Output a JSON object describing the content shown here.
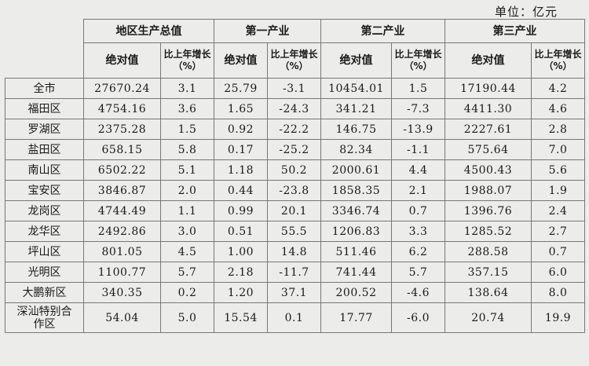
{
  "unit_label": "单位：亿元",
  "headers": {
    "groups": [
      "地区生产总值",
      "第一产业",
      "第二产业",
      "第三产业"
    ],
    "absolute": "绝对值",
    "growth": "比上年增长（%）"
  },
  "rows": [
    {
      "region": "全市",
      "gdp": "27670.24",
      "gdp_g": "3.1",
      "p1": "25.79",
      "p1_g": "-3.1",
      "p2": "10454.01",
      "p2_g": "1.5",
      "p3": "17190.44",
      "p3_g": "4.2"
    },
    {
      "region": "福田区",
      "gdp": "4754.16",
      "gdp_g": "3.6",
      "p1": "1.65",
      "p1_g": "-24.3",
      "p2": "341.21",
      "p2_g": "-7.3",
      "p3": "4411.30",
      "p3_g": "4.6"
    },
    {
      "region": "罗湖区",
      "gdp": "2375.28",
      "gdp_g": "1.5",
      "p1": "0.92",
      "p1_g": "-22.2",
      "p2": "146.75",
      "p2_g": "-13.9",
      "p3": "2227.61",
      "p3_g": "2.8"
    },
    {
      "region": "盐田区",
      "gdp": "658.15",
      "gdp_g": "5.8",
      "p1": "0.17",
      "p1_g": "-25.2",
      "p2": "82.34",
      "p2_g": "-1.1",
      "p3": "575.64",
      "p3_g": "7.0"
    },
    {
      "region": "南山区",
      "gdp": "6502.22",
      "gdp_g": "5.1",
      "p1": "1.18",
      "p1_g": "50.2",
      "p2": "2000.61",
      "p2_g": "4.4",
      "p3": "4500.43",
      "p3_g": "5.6"
    },
    {
      "region": "宝安区",
      "gdp": "3846.87",
      "gdp_g": "2.0",
      "p1": "0.44",
      "p1_g": "-23.8",
      "p2": "1858.35",
      "p2_g": "2.1",
      "p3": "1988.07",
      "p3_g": "1.9"
    },
    {
      "region": "龙岗区",
      "gdp": "4744.49",
      "gdp_g": "1.1",
      "p1": "0.99",
      "p1_g": "20.1",
      "p2": "3346.74",
      "p2_g": "0.7",
      "p3": "1396.76",
      "p3_g": "2.4"
    },
    {
      "region": "龙华区",
      "gdp": "2492.86",
      "gdp_g": "3.0",
      "p1": "0.51",
      "p1_g": "55.5",
      "p2": "1206.83",
      "p2_g": "3.3",
      "p3": "1285.52",
      "p3_g": "2.7"
    },
    {
      "region": "坪山区",
      "gdp": "801.05",
      "gdp_g": "4.5",
      "p1": "1.00",
      "p1_g": "14.8",
      "p2": "511.46",
      "p2_g": "6.2",
      "p3": "288.58",
      "p3_g": "0.7"
    },
    {
      "region": "光明区",
      "gdp": "1100.77",
      "gdp_g": "5.7",
      "p1": "2.18",
      "p1_g": "-11.7",
      "p2": "741.44",
      "p2_g": "5.7",
      "p3": "357.15",
      "p3_g": "6.0"
    },
    {
      "region": "大鹏新区",
      "gdp": "340.35",
      "gdp_g": "0.2",
      "p1": "1.20",
      "p1_g": "37.1",
      "p2": "200.52",
      "p2_g": "-4.6",
      "p3": "138.64",
      "p3_g": "8.0"
    },
    {
      "region": "深汕特别合作区",
      "gdp": "54.04",
      "gdp_g": "5.0",
      "p1": "15.54",
      "p1_g": "0.1",
      "p2": "17.77",
      "p2_g": "-6.0",
      "p3": "20.74",
      "p3_g": "19.9"
    }
  ]
}
